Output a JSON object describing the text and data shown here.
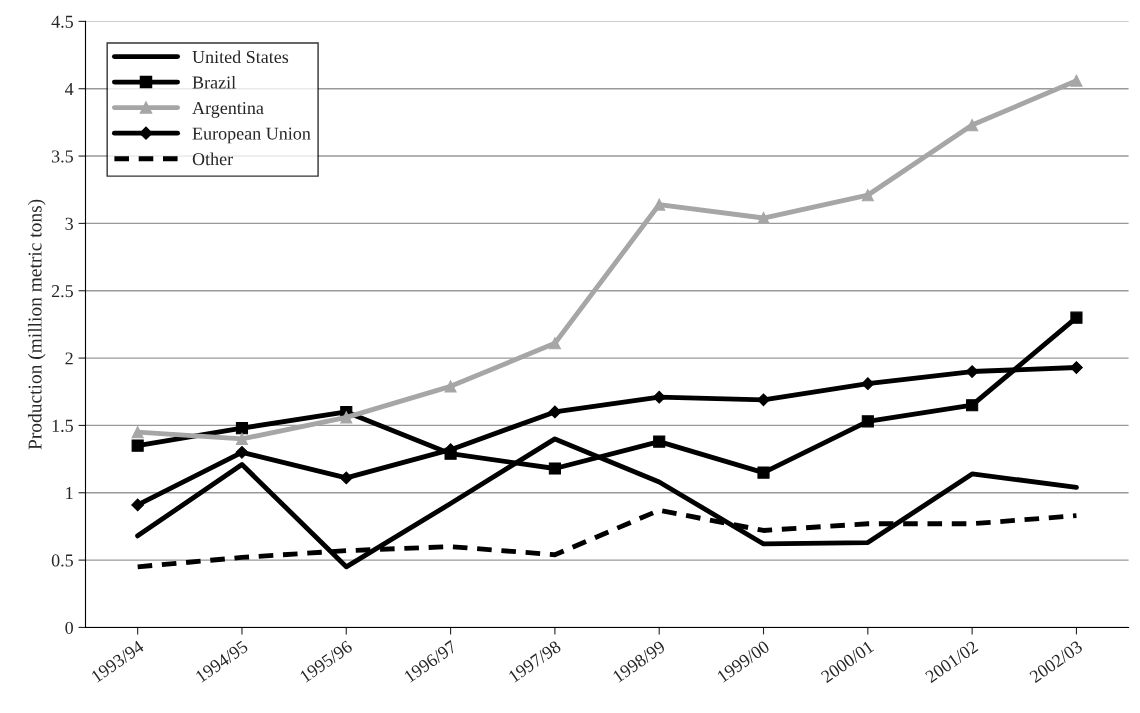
{
  "chart_data": {
    "type": "line",
    "ylabel": "Production (million metric tons)",
    "categories": [
      "1993/94",
      "1994/95",
      "1995/96",
      "1996/97",
      "1997/98",
      "1998/99",
      "1999/00",
      "2000/01",
      "2001/02",
      "2002/03"
    ],
    "series": [
      {
        "name": "United States",
        "color": "#000000",
        "marker": "none",
        "line_style": "solid",
        "values": [
          0.68,
          1.21,
          0.45,
          0.92,
          1.4,
          1.08,
          0.62,
          0.63,
          1.14,
          1.04
        ]
      },
      {
        "name": "Brazil",
        "color": "#000000",
        "marker": "square",
        "line_style": "solid",
        "values": [
          1.35,
          1.48,
          1.6,
          1.29,
          1.18,
          1.38,
          1.15,
          1.53,
          1.65,
          2.3
        ]
      },
      {
        "name": "Argentina",
        "color": "#a6a6a6",
        "marker": "triangle",
        "line_style": "solid",
        "values": [
          1.45,
          1.4,
          1.56,
          1.79,
          2.11,
          3.14,
          3.04,
          3.21,
          3.73,
          4.06
        ]
      },
      {
        "name": "European Union",
        "color": "#000000",
        "marker": "diamond",
        "line_style": "solid",
        "values": [
          0.91,
          1.3,
          1.11,
          1.32,
          1.6,
          1.71,
          1.69,
          1.81,
          1.9,
          1.93
        ]
      },
      {
        "name": "Other",
        "color": "#000000",
        "marker": "none",
        "line_style": "dashed",
        "values": [
          0.45,
          0.52,
          0.57,
          0.6,
          0.54,
          0.87,
          0.72,
          0.77,
          0.77,
          0.83
        ]
      }
    ],
    "ylim": [
      0,
      4.5
    ],
    "yticks": [
      0,
      0.5,
      1,
      1.5,
      2,
      2.5,
      3,
      3.5,
      4,
      4.5
    ],
    "grid": "y",
    "legend": "top left"
  }
}
